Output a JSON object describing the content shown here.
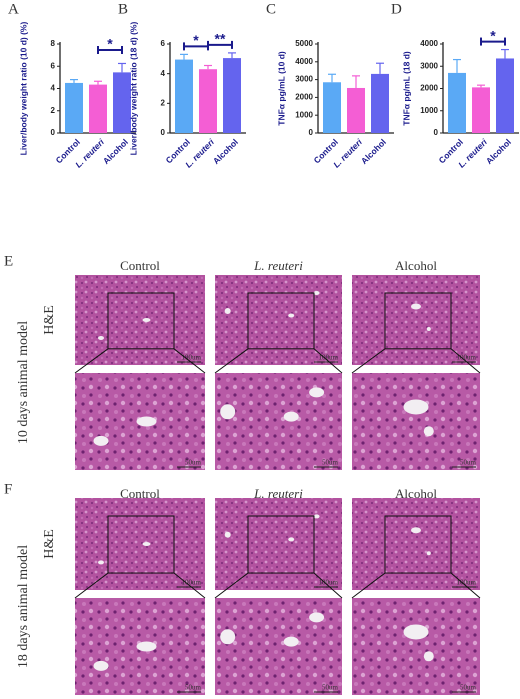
{
  "chart_data": [
    {
      "type": "bar",
      "label": "A",
      "y_label": "Liver/body weight ratio (10 d)  (%)",
      "categories": [
        "Control",
        "L. reuteri",
        "Alcohol"
      ],
      "values": [
        4.5,
        4.35,
        5.45
      ],
      "errors": [
        0.3,
        0.3,
        0.8
      ],
      "colors": [
        "#5aa9f5",
        "#f45ed4",
        "#6464ee"
      ],
      "ylim": [
        0,
        8
      ],
      "yticks": [
        0,
        2,
        4,
        6,
        8
      ],
      "significance": [
        {
          "between": [
            1,
            2
          ],
          "label": "*"
        }
      ]
    },
    {
      "type": "bar",
      "label": "B",
      "y_label": "Liver/body weight ratio (18 d)  (%)",
      "categories": [
        "Control",
        "L. reuteri",
        "Alcohol"
      ],
      "values": [
        4.95,
        4.3,
        5.05
      ],
      "errors": [
        0.35,
        0.25,
        0.35
      ],
      "colors": [
        "#5aa9f5",
        "#f45ed4",
        "#6464ee"
      ],
      "ylim": [
        0,
        6
      ],
      "yticks": [
        0,
        2,
        4,
        6
      ],
      "significance": [
        {
          "between": [
            0,
            1
          ],
          "label": "*"
        },
        {
          "between": [
            1,
            2
          ],
          "label": "**"
        }
      ]
    },
    {
      "type": "bar",
      "label": "C",
      "y_label": "TNFα pg/mL (10 d)",
      "categories": [
        "Control",
        "L. reuteri",
        "Alcohol"
      ],
      "values": [
        2850,
        2530,
        3320
      ],
      "errors": [
        450,
        680,
        600
      ],
      "colors": [
        "#5aa9f5",
        "#f45ed4",
        "#6464ee"
      ],
      "ylim": [
        0,
        5000
      ],
      "yticks": [
        0,
        1000,
        2000,
        3000,
        4000,
        5000
      ],
      "significance": []
    },
    {
      "type": "bar",
      "label": "D",
      "y_label": "TNFα pg/mL (18 d)",
      "categories": [
        "Control",
        "L. reuteri",
        "Alcohol"
      ],
      "values": [
        2700,
        2050,
        3350
      ],
      "errors": [
        600,
        100,
        400
      ],
      "colors": [
        "#5aa9f5",
        "#f45ed4",
        "#6464ee"
      ],
      "ylim": [
        0,
        4000
      ],
      "yticks": [
        0,
        1000,
        2000,
        3000,
        4000
      ],
      "significance": [
        {
          "between": [
            1,
            2
          ],
          "label": "*"
        }
      ]
    }
  ],
  "histology": {
    "panels": [
      {
        "label": "E",
        "model": "10 days animal model",
        "stain": "H&E",
        "groups": [
          "Control",
          "L. reuteri",
          "Alcohol"
        ],
        "scale_bars": [
          "100um",
          "50um"
        ]
      },
      {
        "label": "F",
        "model": "18 days animal model",
        "stain": "H&E",
        "groups": [
          "Control",
          "L. reuteri",
          "Alcohol"
        ],
        "scale_bars": [
          "100um",
          "50um"
        ]
      }
    ]
  }
}
